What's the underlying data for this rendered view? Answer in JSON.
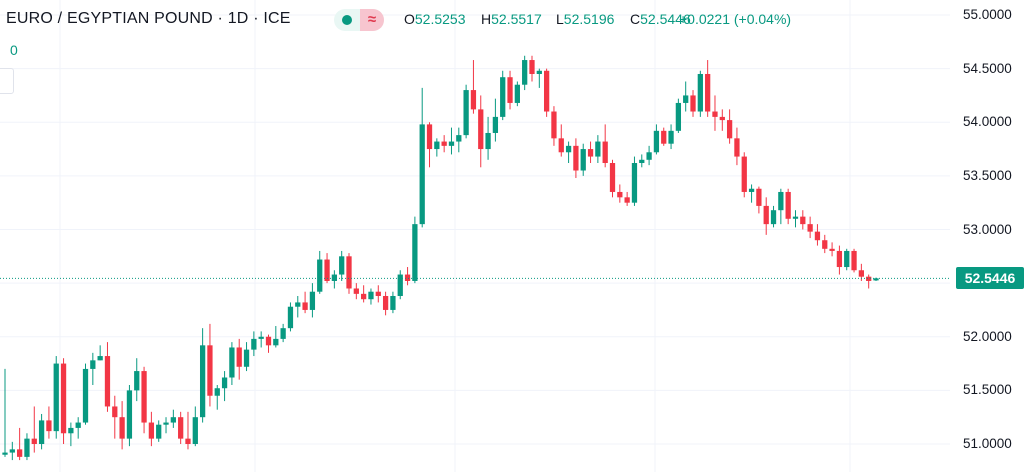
{
  "header": {
    "symbol": "EURO / EGYPTIAN POUND · 1D · ICE",
    "open_label": "O",
    "open": "52.5253",
    "high_label": "H",
    "high": "52.5517",
    "low_label": "L",
    "low": "52.5196",
    "close_label": "C",
    "close": "52.5446",
    "change": "+0.0221 (+0.04%)",
    "volume": "0",
    "up_color": "#089981",
    "down_color": "#f23645"
  },
  "chart_data": {
    "type": "candlestick",
    "title": "EURO / EGYPTIAN POUND · 1D · ICE",
    "ylim": [
      50.85,
      55.12
    ],
    "yticks": [
      "55.0000",
      "54.5000",
      "54.0000",
      "53.5000",
      "53.0000",
      "52.5000",
      "52.0000",
      "51.5000",
      "51.0000"
    ],
    "grid": true,
    "last_price": "52.5446",
    "candles": [
      [
        50.9,
        51.7,
        50.88,
        50.92
      ],
      [
        50.92,
        51.02,
        50.85,
        50.95
      ],
      [
        50.95,
        51.15,
        50.85,
        50.88
      ],
      [
        50.88,
        51.1,
        50.85,
        51.05
      ],
      [
        51.05,
        51.35,
        50.92,
        51.0
      ],
      [
        51.0,
        51.28,
        50.95,
        51.22
      ],
      [
        51.22,
        51.35,
        51.05,
        51.12
      ],
      [
        51.12,
        51.82,
        51.05,
        51.75
      ],
      [
        51.75,
        51.8,
        51.0,
        51.1
      ],
      [
        51.1,
        51.2,
        50.98,
        51.15
      ],
      [
        51.15,
        51.25,
        51.05,
        51.2
      ],
      [
        51.2,
        51.75,
        51.18,
        51.7
      ],
      [
        51.7,
        51.85,
        51.55,
        51.78
      ],
      [
        51.78,
        51.92,
        51.78,
        51.82
      ],
      [
        51.82,
        51.95,
        51.3,
        51.35
      ],
      [
        51.35,
        51.45,
        51.05,
        51.25
      ],
      [
        51.25,
        51.4,
        50.95,
        51.05
      ],
      [
        51.05,
        51.55,
        50.98,
        51.5
      ],
      [
        51.5,
        51.8,
        51.4,
        51.68
      ],
      [
        51.68,
        51.72,
        51.1,
        51.2
      ],
      [
        51.2,
        51.3,
        50.98,
        51.05
      ],
      [
        51.05,
        51.22,
        51.02,
        51.18
      ],
      [
        51.18,
        51.25,
        51.1,
        51.2
      ],
      [
        51.2,
        51.32,
        51.15,
        51.25
      ],
      [
        51.25,
        51.3,
        51.0,
        51.05
      ],
      [
        51.05,
        51.3,
        50.95,
        51.0
      ],
      [
        51.0,
        51.35,
        50.98,
        51.25
      ],
      [
        51.25,
        52.08,
        51.2,
        51.92
      ],
      [
        51.92,
        52.12,
        51.35,
        51.45
      ],
      [
        51.45,
        51.55,
        51.32,
        51.52
      ],
      [
        51.52,
        51.68,
        51.4,
        51.62
      ],
      [
        51.62,
        51.95,
        51.55,
        51.9
      ],
      [
        51.9,
        51.98,
        51.6,
        51.72
      ],
      [
        51.72,
        51.95,
        51.68,
        51.88
      ],
      [
        51.88,
        52.05,
        51.82,
        51.98
      ],
      [
        51.98,
        52.05,
        51.9,
        52.0
      ],
      [
        52.0,
        52.02,
        51.85,
        51.92
      ],
      [
        51.92,
        52.1,
        51.9,
        51.98
      ],
      [
        51.98,
        52.12,
        51.95,
        52.08
      ],
      [
        52.08,
        52.32,
        52.05,
        52.28
      ],
      [
        52.28,
        52.38,
        52.18,
        52.32
      ],
      [
        52.32,
        52.42,
        52.22,
        52.25
      ],
      [
        52.25,
        52.5,
        52.18,
        52.42
      ],
      [
        52.42,
        52.8,
        52.4,
        52.72
      ],
      [
        52.72,
        52.78,
        52.5,
        52.52
      ],
      [
        52.52,
        52.62,
        52.45,
        52.58
      ],
      [
        52.58,
        52.8,
        52.52,
        52.75
      ],
      [
        52.75,
        52.78,
        52.4,
        52.45
      ],
      [
        52.45,
        52.5,
        52.35,
        52.4
      ],
      [
        52.4,
        52.48,
        52.32,
        52.35
      ],
      [
        52.35,
        52.45,
        52.3,
        52.42
      ],
      [
        52.42,
        52.48,
        52.32,
        52.38
      ],
      [
        52.38,
        52.42,
        52.2,
        52.25
      ],
      [
        52.25,
        52.42,
        52.22,
        52.38
      ],
      [
        52.38,
        52.62,
        52.35,
        52.58
      ],
      [
        52.58,
        52.65,
        52.48,
        52.52
      ],
      [
        52.52,
        53.12,
        52.5,
        53.05
      ],
      [
        53.05,
        54.32,
        53.02,
        53.98
      ],
      [
        53.98,
        54.0,
        53.58,
        53.75
      ],
      [
        53.75,
        53.85,
        53.68,
        53.82
      ],
      [
        53.82,
        53.88,
        53.72,
        53.78
      ],
      [
        53.78,
        53.95,
        53.7,
        53.82
      ],
      [
        53.82,
        53.95,
        53.72,
        53.88
      ],
      [
        53.88,
        54.35,
        53.85,
        54.3
      ],
      [
        54.3,
        54.58,
        54.08,
        54.12
      ],
      [
        54.12,
        54.25,
        53.58,
        53.75
      ],
      [
        53.75,
        54.05,
        53.65,
        53.9
      ],
      [
        53.9,
        54.22,
        53.82,
        54.05
      ],
      [
        54.05,
        54.48,
        54.02,
        54.42
      ],
      [
        54.42,
        54.48,
        54.12,
        54.18
      ],
      [
        54.18,
        54.38,
        54.15,
        54.35
      ],
      [
        54.35,
        54.62,
        54.3,
        54.58
      ],
      [
        54.58,
        54.62,
        54.38,
        54.45
      ],
      [
        54.45,
        54.5,
        54.32,
        54.48
      ],
      [
        54.48,
        54.5,
        54.05,
        54.1
      ],
      [
        54.1,
        54.15,
        53.78,
        53.85
      ],
      [
        53.85,
        53.98,
        53.68,
        53.72
      ],
      [
        53.72,
        53.82,
        53.62,
        53.78
      ],
      [
        53.78,
        53.85,
        53.48,
        53.55
      ],
      [
        53.55,
        53.8,
        53.5,
        53.75
      ],
      [
        53.75,
        53.82,
        53.62,
        53.68
      ],
      [
        53.68,
        53.88,
        53.62,
        53.82
      ],
      [
        53.82,
        53.98,
        53.58,
        53.62
      ],
      [
        53.62,
        53.65,
        53.3,
        53.35
      ],
      [
        53.35,
        53.42,
        53.25,
        53.3
      ],
      [
        53.3,
        53.35,
        53.22,
        53.25
      ],
      [
        53.25,
        53.68,
        53.22,
        53.62
      ],
      [
        53.62,
        53.7,
        53.58,
        53.65
      ],
      [
        53.65,
        53.78,
        53.6,
        53.72
      ],
      [
        53.72,
        53.98,
        53.7,
        53.92
      ],
      [
        53.92,
        53.95,
        53.78,
        53.8
      ],
      [
        53.8,
        53.98,
        53.75,
        53.92
      ],
      [
        53.92,
        54.22,
        53.9,
        54.18
      ],
      [
        54.18,
        54.38,
        54.1,
        54.25
      ],
      [
        54.25,
        54.3,
        54.05,
        54.1
      ],
      [
        54.1,
        54.48,
        54.05,
        54.45
      ],
      [
        54.45,
        54.58,
        54.05,
        54.1
      ],
      [
        54.1,
        54.25,
        53.92,
        54.05
      ],
      [
        54.05,
        54.12,
        53.92,
        54.02
      ],
      [
        54.02,
        54.12,
        53.8,
        53.85
      ],
      [
        53.85,
        53.95,
        53.6,
        53.68
      ],
      [
        53.68,
        53.72,
        53.3,
        53.35
      ],
      [
        53.35,
        53.42,
        53.25,
        53.38
      ],
      [
        53.38,
        53.4,
        53.15,
        53.22
      ],
      [
        53.22,
        53.3,
        52.95,
        53.05
      ],
      [
        53.05,
        53.22,
        53.02,
        53.18
      ],
      [
        53.18,
        53.38,
        53.05,
        53.35
      ],
      [
        53.35,
        53.38,
        53.05,
        53.1
      ],
      [
        53.1,
        53.18,
        53.02,
        53.12
      ],
      [
        53.12,
        53.18,
        53.0,
        53.05
      ],
      [
        53.05,
        53.12,
        52.92,
        52.98
      ],
      [
        52.98,
        53.05,
        52.85,
        52.9
      ],
      [
        52.9,
        52.95,
        52.78,
        52.82
      ],
      [
        52.82,
        52.88,
        52.75,
        52.8
      ],
      [
        52.8,
        52.85,
        52.58,
        52.65
      ],
      [
        52.65,
        52.82,
        52.62,
        52.8
      ],
      [
        52.8,
        52.82,
        52.6,
        52.62
      ],
      [
        52.62,
        52.68,
        52.52,
        52.56
      ],
      [
        52.56,
        52.58,
        52.45,
        52.52
      ],
      [
        52.5253,
        52.5517,
        52.5196,
        52.5446
      ]
    ]
  }
}
